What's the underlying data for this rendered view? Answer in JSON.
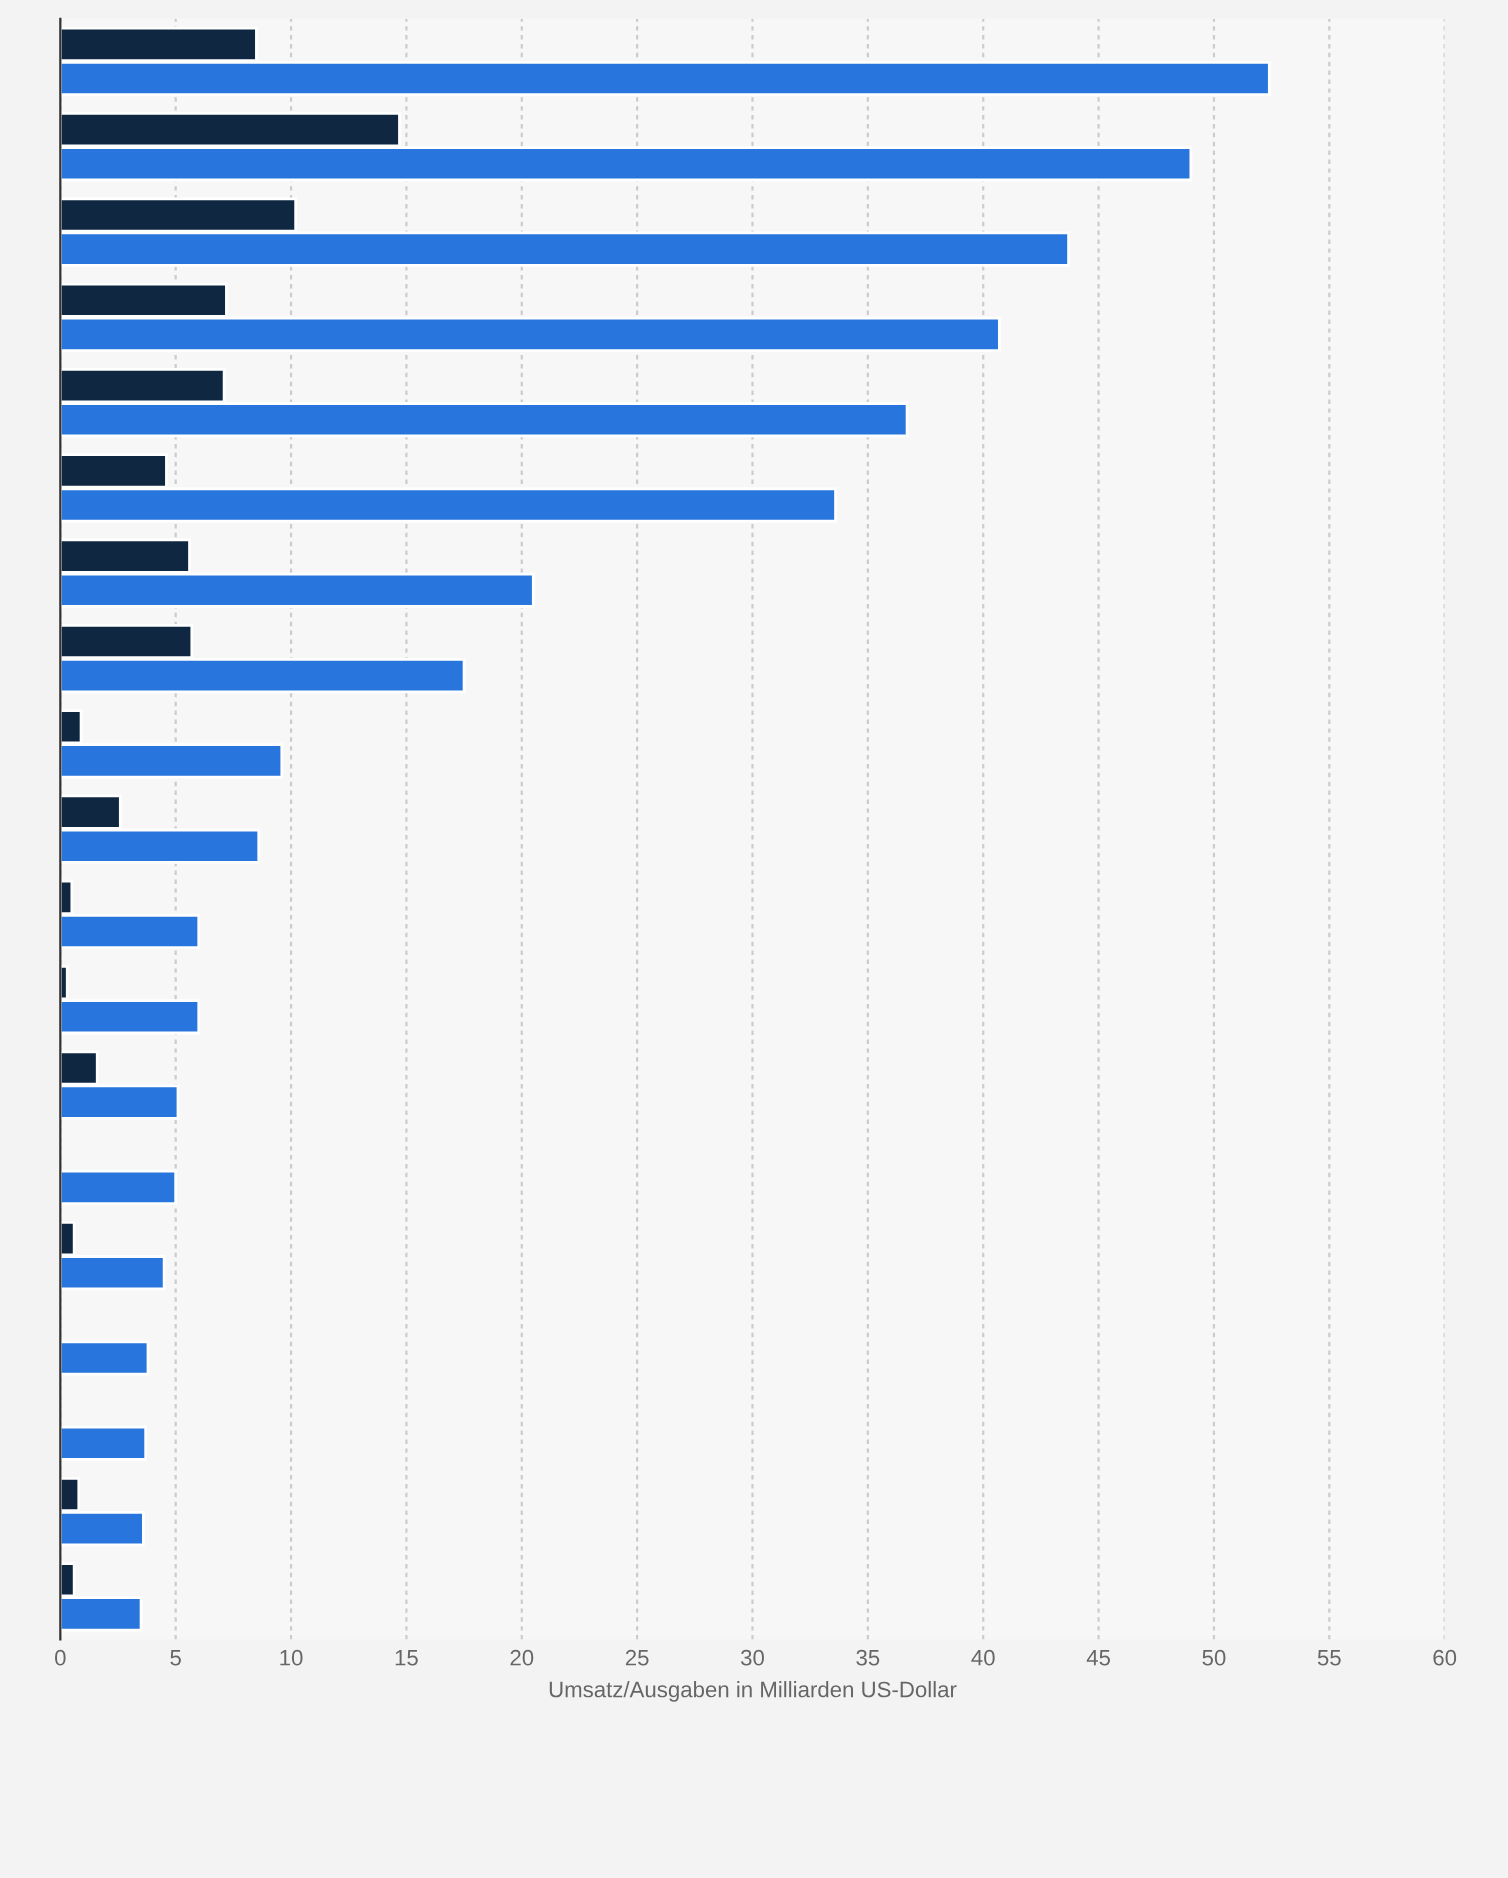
{
  "chart_data": {
    "type": "bar",
    "orientation": "horizontal",
    "categories": [
      null,
      null,
      null,
      null,
      null,
      null,
      null,
      null,
      null,
      null,
      null,
      null,
      null,
      null,
      null,
      null,
      null,
      null,
      null
    ],
    "series": [
      {
        "color": "#0f2740",
        "values": [
          8.5,
          14.7,
          10.2,
          7.2,
          7.1,
          4.6,
          5.6,
          5.7,
          0.9,
          2.6,
          0.5,
          0.3,
          1.6,
          null,
          0.6,
          null,
          null,
          0.8,
          0.6
        ]
      },
      {
        "color": "#2876dd",
        "values": [
          52.4,
          49.0,
          43.7,
          40.7,
          36.7,
          33.6,
          20.5,
          17.5,
          9.6,
          8.6,
          6.0,
          6.0,
          5.1,
          5.0,
          4.5,
          3.8,
          3.7,
          3.6,
          3.5
        ]
      }
    ],
    "xlabel": "Umsatz/Ausgaben in Milliarden US-Dollar",
    "xlim": [
      0,
      60
    ],
    "xticks": [
      0,
      5,
      10,
      15,
      20,
      25,
      30,
      35,
      40,
      45,
      50,
      55,
      60
    ],
    "grid": "x",
    "tick_labels": "x"
  }
}
